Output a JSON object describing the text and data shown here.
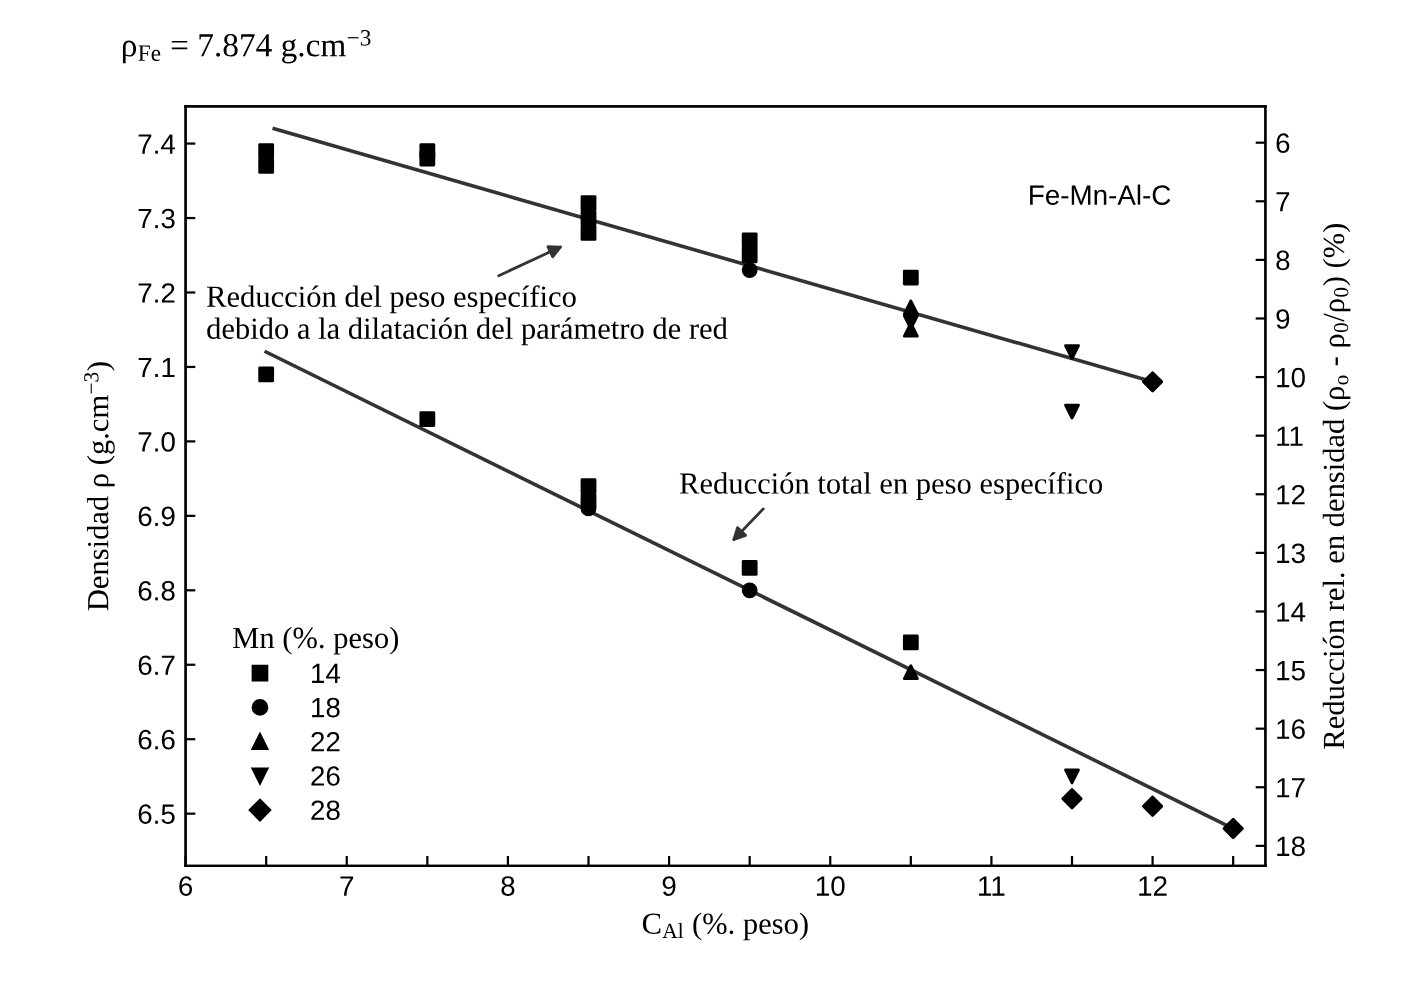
{
  "chart_data": {
    "type": "scatter",
    "title": "ρ$_{Fe}$ = 7.874 g.cm$^{−3}$",
    "xlabel": "C$_{Al}$ (%. peso)",
    "ylabel": "Densidad ρ (g.cm$^{−3}$)",
    "y2label": "Reducción rel. en densidad (ρ$_{o}$ - ρ$_{0}$/ρ$_{0}$) (%)",
    "legend_title": "Mn (%. peso)",
    "legend": "bottom left",
    "grid": false,
    "xlim": [
      6,
      12.7
    ],
    "xticks": [
      6,
      {
        "value": 6.5,
        "label": null
      },
      7,
      {
        "value": 7.5,
        "label": null
      },
      8,
      {
        "value": 8.5,
        "label": null
      },
      9,
      {
        "value": 9.5,
        "label": null
      },
      10,
      {
        "value": 10.5,
        "label": null
      },
      11,
      {
        "value": 11.5,
        "label": null
      },
      12,
      {
        "value": 12.5,
        "label": null
      }
    ],
    "ylim": [
      6.43,
      7.45
    ],
    "yticks": [
      6.5,
      6.6,
      6.7,
      6.8,
      6.9,
      {
        "value": 7.0,
        "label": "7.0"
      },
      7.1,
      7.2,
      7.3,
      7.4
    ],
    "y2lim": [
      18.34,
      5.38
    ],
    "y2ticks": [
      6,
      7,
      8,
      9,
      10,
      11,
      12,
      13,
      14,
      15,
      16,
      17,
      18
    ],
    "annotations": [
      "Fe-Mn-Al-C",
      "Reducción del peso específico\ndebido a la dilatación del parámetro de red",
      "Reducción total en peso específico"
    ],
    "series": [
      {
        "name": "14",
        "marker": "square",
        "color": "#000000",
        "x": [
          6.5,
          6.5,
          6.5,
          7.5,
          7.5,
          7.5,
          8.5,
          8.5,
          8.5,
          8.5,
          8.5,
          9.5,
          9.5,
          9.5,
          10.5,
          10.5
        ],
        "values": [
          7.39,
          7.37,
          7.09,
          7.39,
          7.38,
          7.03,
          7.32,
          7.3,
          7.28,
          6.94,
          6.92,
          7.27,
          7.25,
          6.83,
          7.22,
          6.73
        ]
      },
      {
        "name": "18",
        "marker": "circle",
        "color": "#000000",
        "x": [
          8.5,
          9.5,
          9.5
        ],
        "values": [
          6.91,
          7.23,
          6.8
        ]
      },
      {
        "name": "22",
        "marker": "triangle",
        "color": "#000000",
        "x": [
          10.5,
          10.5,
          10.5
        ],
        "values": [
          7.18,
          7.15,
          6.69
        ]
      },
      {
        "name": "26",
        "marker": "triangle_down",
        "color": "#000000",
        "x": [
          10.5,
          11.5,
          11.5,
          11.5
        ],
        "values": [
          7.16,
          7.12,
          7.04,
          6.55
        ]
      },
      {
        "name": "28",
        "marker": "diamond",
        "color": "#000000",
        "x": [
          11.5,
          12,
          12,
          12.5
        ],
        "values": [
          6.52,
          7.08,
          6.51,
          6.48
        ]
      },
      {
        "type": "line",
        "color": "#333333",
        "x": [
          6.55,
          12
        ],
        "values": [
          7.42,
          7.08
        ]
      },
      {
        "type": "line",
        "color": "#333333",
        "x": [
          6.5,
          12.5
        ],
        "values": [
          7.12,
          6.48
        ]
      }
    ]
  }
}
